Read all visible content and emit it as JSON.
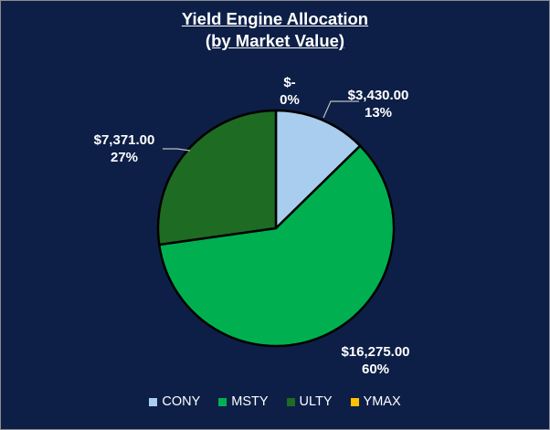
{
  "chart_data": {
    "type": "pie",
    "title_line1": "Yield Engine Allocation",
    "title_line2": "(by Market Value)",
    "slices": [
      {
        "name": "CONY",
        "value": 3430.0,
        "value_label": "$3,430.00",
        "percent_label": "13%",
        "color": "#a9cdee"
      },
      {
        "name": "MSTY",
        "value": 16275.0,
        "value_label": "$16,275.00",
        "percent_label": "60%",
        "color": "#00b050"
      },
      {
        "name": "ULTY",
        "value": 7371.0,
        "value_label": "$7,371.00",
        "percent_label": "27%",
        "color": "#1e6b23"
      },
      {
        "name": "YMAX",
        "value": 0,
        "value_label": "$-",
        "percent_label": "0%",
        "color": "#ffc000"
      }
    ],
    "legend_position": "bottom",
    "background": "#0d1f47"
  }
}
